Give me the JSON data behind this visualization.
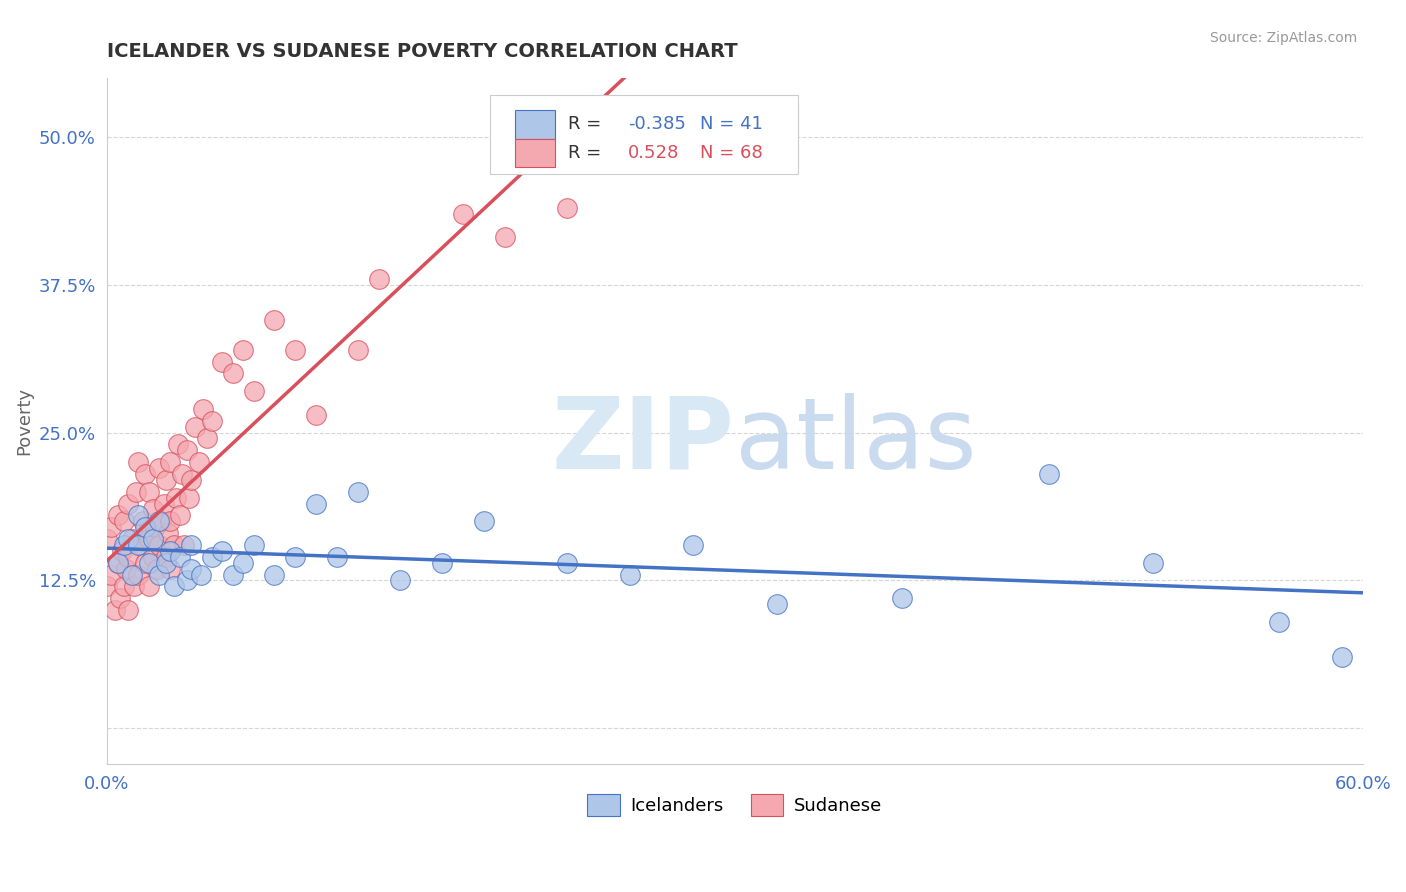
{
  "title": "ICELANDER VS SUDANESE POVERTY CORRELATION CHART",
  "source": "Source: ZipAtlas.com",
  "ylabel": "Poverty",
  "xlim": [
    0.0,
    0.6
  ],
  "ylim": [
    -0.03,
    0.55
  ],
  "r_icelander": -0.385,
  "n_icelander": 41,
  "r_sudanese": 0.528,
  "n_sudanese": 68,
  "icelander_color": "#aec6e8",
  "sudanese_color": "#f4a8b0",
  "line_icelander_color": "#4472c4",
  "line_sudanese_color": "#d94f5c",
  "legend_icelander": "Icelanders",
  "legend_sudanese": "Sudanese",
  "icelander_x": [
    0.005,
    0.008,
    0.01,
    0.012,
    0.015,
    0.015,
    0.018,
    0.02,
    0.022,
    0.025,
    0.025,
    0.028,
    0.03,
    0.032,
    0.035,
    0.038,
    0.04,
    0.04,
    0.045,
    0.05,
    0.055,
    0.06,
    0.065,
    0.07,
    0.08,
    0.09,
    0.1,
    0.11,
    0.12,
    0.14,
    0.16,
    0.18,
    0.22,
    0.25,
    0.28,
    0.32,
    0.38,
    0.45,
    0.5,
    0.56,
    0.59
  ],
  "icelander_y": [
    0.14,
    0.155,
    0.16,
    0.13,
    0.155,
    0.18,
    0.17,
    0.14,
    0.16,
    0.13,
    0.175,
    0.14,
    0.15,
    0.12,
    0.145,
    0.125,
    0.135,
    0.155,
    0.13,
    0.145,
    0.15,
    0.13,
    0.14,
    0.155,
    0.13,
    0.145,
    0.19,
    0.145,
    0.2,
    0.125,
    0.14,
    0.175,
    0.14,
    0.13,
    0.155,
    0.105,
    0.11,
    0.215,
    0.14,
    0.09,
    0.06
  ],
  "sudanese_x": [
    0.0,
    0.0,
    0.002,
    0.002,
    0.004,
    0.005,
    0.005,
    0.006,
    0.007,
    0.008,
    0.008,
    0.009,
    0.01,
    0.01,
    0.01,
    0.012,
    0.013,
    0.014,
    0.015,
    0.015,
    0.016,
    0.017,
    0.018,
    0.018,
    0.019,
    0.02,
    0.02,
    0.02,
    0.022,
    0.022,
    0.023,
    0.024,
    0.025,
    0.025,
    0.026,
    0.027,
    0.028,
    0.028,
    0.029,
    0.03,
    0.03,
    0.03,
    0.032,
    0.033,
    0.034,
    0.035,
    0.036,
    0.037,
    0.038,
    0.039,
    0.04,
    0.042,
    0.044,
    0.046,
    0.048,
    0.05,
    0.055,
    0.06,
    0.065,
    0.07,
    0.08,
    0.09,
    0.1,
    0.12,
    0.13,
    0.17,
    0.19,
    0.22
  ],
  "sudanese_y": [
    0.12,
    0.16,
    0.13,
    0.17,
    0.1,
    0.14,
    0.18,
    0.11,
    0.15,
    0.12,
    0.175,
    0.135,
    0.1,
    0.145,
    0.19,
    0.16,
    0.12,
    0.2,
    0.13,
    0.225,
    0.155,
    0.175,
    0.14,
    0.215,
    0.165,
    0.12,
    0.16,
    0.2,
    0.145,
    0.185,
    0.17,
    0.135,
    0.155,
    0.22,
    0.175,
    0.19,
    0.145,
    0.21,
    0.165,
    0.135,
    0.175,
    0.225,
    0.155,
    0.195,
    0.24,
    0.18,
    0.215,
    0.155,
    0.235,
    0.195,
    0.21,
    0.255,
    0.225,
    0.27,
    0.245,
    0.26,
    0.31,
    0.3,
    0.32,
    0.285,
    0.345,
    0.32,
    0.265,
    0.32,
    0.38,
    0.435,
    0.415,
    0.44
  ]
}
